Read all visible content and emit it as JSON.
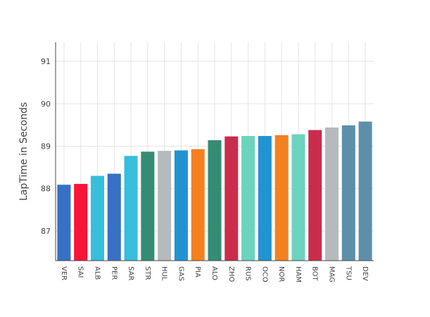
{
  "chart_data": {
    "type": "bar",
    "title": "",
    "xlabel": "",
    "ylabel": "LapTime in Seconds",
    "ylim": [
      86.3,
      91.45
    ],
    "yticks": [
      87,
      88,
      89,
      90,
      91
    ],
    "grid": true,
    "categories": [
      "VER",
      "SAI",
      "ALB",
      "PER",
      "SAR",
      "STR",
      "HUL",
      "GAS",
      "PIA",
      "ALO",
      "ZHO",
      "RUS",
      "OCO",
      "NOR",
      "HAM",
      "BOT",
      "MAG",
      "TSU",
      "DEV"
    ],
    "values": [
      88.09,
      88.11,
      88.3,
      88.35,
      88.77,
      88.87,
      88.89,
      88.9,
      88.93,
      89.14,
      89.23,
      89.24,
      89.24,
      89.26,
      89.28,
      89.38,
      89.44,
      89.49,
      89.58
    ],
    "colors": [
      "#3671C6",
      "#F91536",
      "#37BEDD",
      "#3671C6",
      "#37BEDD",
      "#358C75",
      "#B6BABD",
      "#2293D1",
      "#F58020",
      "#358C75",
      "#C92D4B",
      "#6CD3BF",
      "#2293D1",
      "#F58020",
      "#6CD3BF",
      "#C92D4B",
      "#B6BABD",
      "#5E8FAA",
      "#5E8FAA"
    ]
  }
}
